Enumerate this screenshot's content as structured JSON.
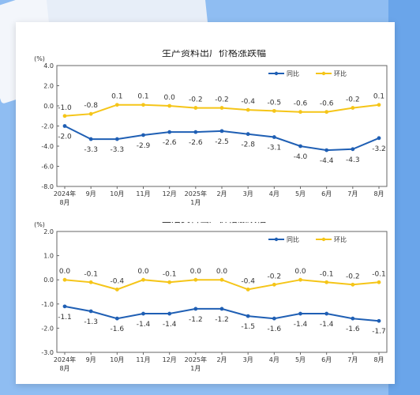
{
  "chart_data": [
    {
      "type": "line",
      "title": "生产资料出厂价格涨跌幅",
      "ylabel": "(%)",
      "ylim": [
        -8,
        4
      ],
      "yticks": [
        "4.0",
        "2.0",
        "0.0",
        "-2.0",
        "-4.0",
        "-6.0",
        "-8.0"
      ],
      "categories": [
        "2024年|8月",
        "9月",
        "10月",
        "11月",
        "12月",
        "2025年|1月",
        "2月",
        "3月",
        "4月",
        "5月",
        "6月",
        "7月",
        "8月"
      ],
      "legend_position": "top-right",
      "grid": false,
      "series": [
        {
          "name": "同比",
          "color": "#1f5fb4",
          "values": [
            -2.0,
            -3.3,
            -3.3,
            -2.9,
            -2.6,
            -2.6,
            -2.5,
            -2.8,
            -3.1,
            -4.0,
            -4.4,
            -4.3,
            -3.2
          ],
          "labels": [
            "-2.0",
            "-3.3",
            "-3.3",
            "-2.9",
            "-2.6",
            "-2.6",
            "-2.5",
            "-2.8",
            "-3.1",
            "-4.0",
            "-4.4",
            "-4.3",
            "-3.2"
          ]
        },
        {
          "name": "环比",
          "color": "#f5c518",
          "values": [
            -1.0,
            -0.8,
            0.1,
            0.1,
            0.0,
            -0.2,
            -0.2,
            -0.4,
            -0.5,
            -0.6,
            -0.6,
            -0.2,
            0.1
          ],
          "labels": [
            "-1.0",
            "-0.8",
            "0.1",
            "0.1",
            "0.0",
            "-0.2",
            "-0.2",
            "-0.4",
            "-0.5",
            "-0.6",
            "-0.6",
            "-0.2",
            "0.1"
          ]
        }
      ]
    },
    {
      "type": "line",
      "title": "生活资料出厂价格涨跌幅",
      "ylabel": "(%)",
      "ylim": [
        -3,
        2
      ],
      "yticks": [
        "2.0",
        "1.0",
        "0.0",
        "-1.0",
        "-2.0",
        "-3.0"
      ],
      "categories": [
        "2024年|8月",
        "9月",
        "10月",
        "11月",
        "12月",
        "2025年|1月",
        "2月",
        "3月",
        "4月",
        "5月",
        "6月",
        "7月",
        "8月"
      ],
      "legend_position": "top-right",
      "grid": false,
      "series": [
        {
          "name": "同比",
          "color": "#1f5fb4",
          "values": [
            -1.1,
            -1.3,
            -1.6,
            -1.4,
            -1.4,
            -1.2,
            -1.2,
            -1.5,
            -1.6,
            -1.4,
            -1.4,
            -1.6,
            -1.7
          ],
          "labels": [
            "-1.1",
            "-1.3",
            "-1.6",
            "-1.4",
            "-1.4",
            "-1.2",
            "-1.2",
            "-1.5",
            "-1.6",
            "-1.4",
            "-1.4",
            "-1.6",
            "-1.7"
          ]
        },
        {
          "name": "环比",
          "color": "#f5c518",
          "values": [
            0.0,
            -0.1,
            -0.4,
            0.0,
            -0.1,
            0.0,
            0.0,
            -0.4,
            -0.2,
            0.0,
            -0.1,
            -0.2,
            -0.1
          ],
          "labels": [
            "0.0",
            "-0.1",
            "-0.4",
            "0.0",
            "-0.1",
            "0.0",
            "0.0",
            "-0.4",
            "-0.2",
            "0.0",
            "-0.1",
            "-0.2",
            "-0.1"
          ]
        }
      ]
    }
  ]
}
